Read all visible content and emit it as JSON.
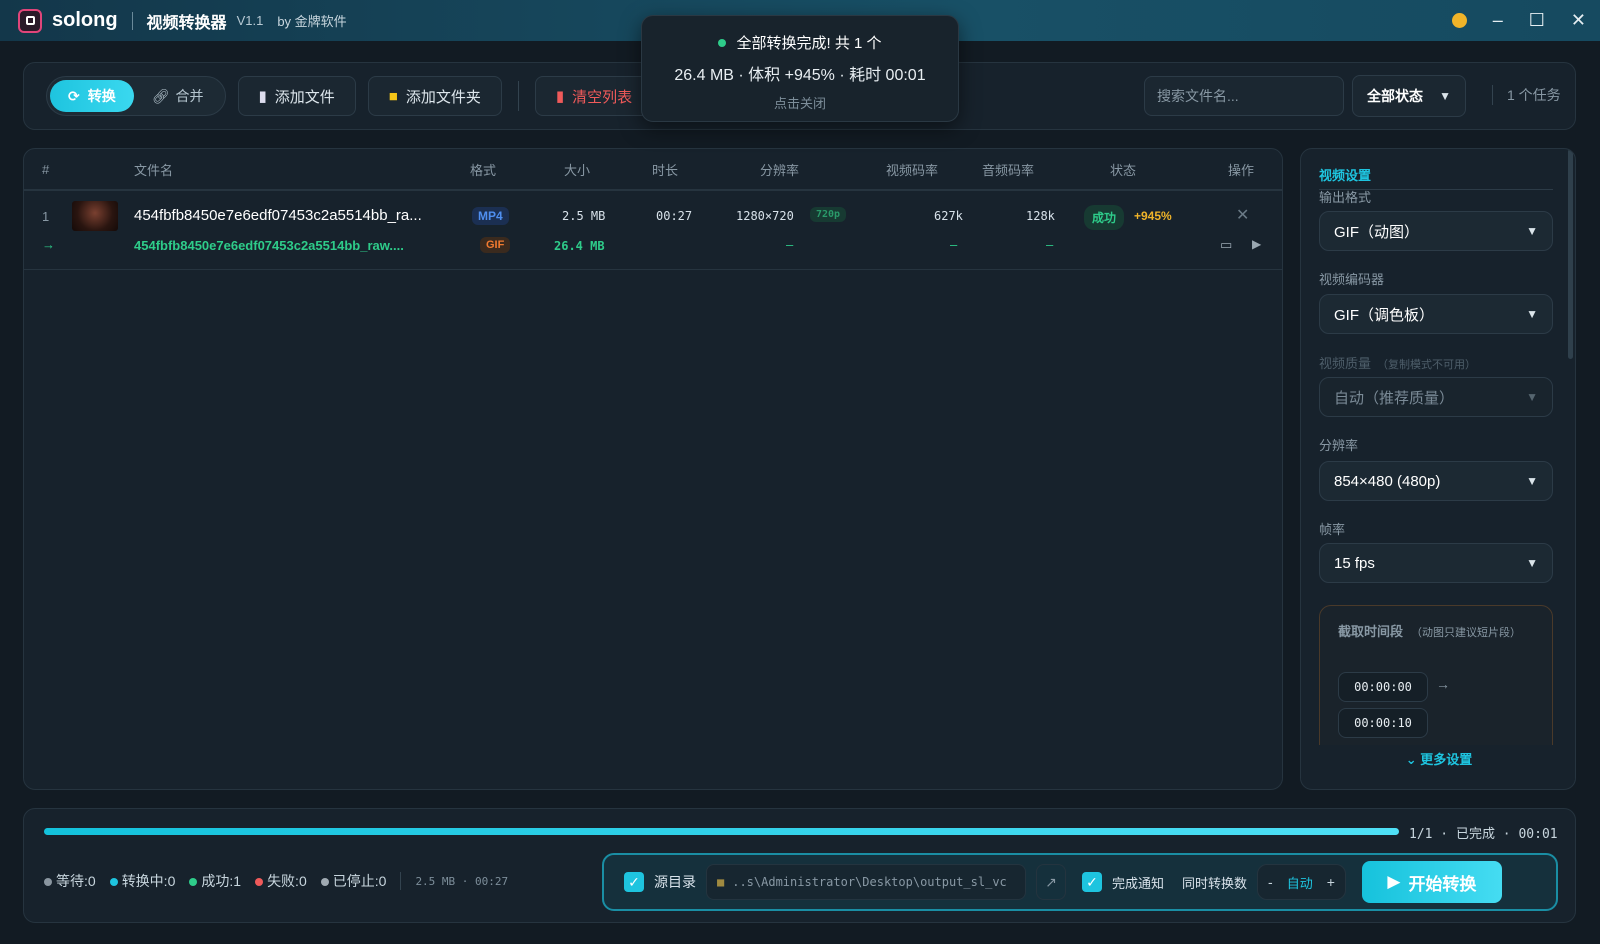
{
  "titlebar": {
    "brand": "solong",
    "app_name": "视频转换器",
    "version": "V1.1",
    "by": "by 金牌软件",
    "minimize": "–",
    "maximize": "☐",
    "close": "✕"
  },
  "toolbar": {
    "mode_convert": "转换",
    "mode_merge": "合并",
    "add_file": "添加文件",
    "add_folder": "添加文件夹",
    "clear_list": "清空列表",
    "search_placeholder": "搜索文件名...",
    "status_filter": "全部状态",
    "task_count": "1 个任务"
  },
  "toast": {
    "title": "全部转换完成! 共 1 个",
    "detail": "26.4 MB · 体积 +945% · 耗时 00:01",
    "dismiss": "点击关闭"
  },
  "table": {
    "headers": [
      "#",
      "文件名",
      "格式",
      "大小",
      "时长",
      "分辨率",
      "视频码率",
      "音频码率",
      "状态",
      "操作"
    ],
    "rows": [
      {
        "index": "1",
        "name": "454fbfb8450e7e6edf07453c2a5514bb_ra...",
        "format": "MP4",
        "size": "2.5 MB",
        "duration": "00:27",
        "resolution": "1280×720",
        "res_tag": "720p",
        "vbitrate": "627k",
        "abitrate": "128k",
        "status": "成功",
        "change": "+945%",
        "output": {
          "arrow": "→",
          "name": "454fbfb8450e7e6edf07453c2a5514bb_raw....",
          "format": "GIF",
          "size": "26.4 MB",
          "resolution": "–",
          "vbitrate": "–",
          "abitrate": "–"
        }
      }
    ]
  },
  "settings": {
    "title": "视频设置",
    "output_format_label": "输出格式",
    "output_format": "GIF（动图）",
    "codec_label": "视频编码器",
    "codec": "GIF（调色板）",
    "quality_label": "视频质量",
    "quality_note": "（复制模式不可用）",
    "quality": "自动（推荐质量）",
    "resolution_label": "分辨率",
    "resolution": "854×480 (480p)",
    "fps_label": "帧率",
    "fps": "15 fps",
    "clip_label": "截取时间段",
    "clip_note": "（动图只建议短片段）",
    "clip_start": "00:00:00",
    "clip_end": "00:00:10",
    "clip_arrow": "→",
    "more": "更多设置"
  },
  "bottom": {
    "progress": 1.0,
    "progress_text": "1/1",
    "progress_state": "已完成",
    "elapsed": "00:01",
    "stats": [
      {
        "label": "等待:0",
        "color": "#8a96a0"
      },
      {
        "label": "转换中:0",
        "color": "#1ec4df"
      },
      {
        "label": "成功:1",
        "color": "#2ecc8a"
      },
      {
        "label": "失败:0",
        "color": "#ef5a5a"
      },
      {
        "label": "已停止:0",
        "color": "#a0aab2"
      }
    ],
    "summary": "2.5 MB · 00:27",
    "source_dir": "源目录",
    "output_path": "..s\\Administrator\\Desktop\\output_sl_vc",
    "notify": "完成通知",
    "concurrency_label": "同时转换数",
    "concurrency_minus": "-",
    "concurrency": "自动",
    "concurrency_plus": "+",
    "start": "开始转换"
  },
  "colors": {
    "accent": "#1ec4df",
    "success": "#2ecc8a",
    "danger": "#ef5a5a",
    "warning": "#f0b429"
  }
}
